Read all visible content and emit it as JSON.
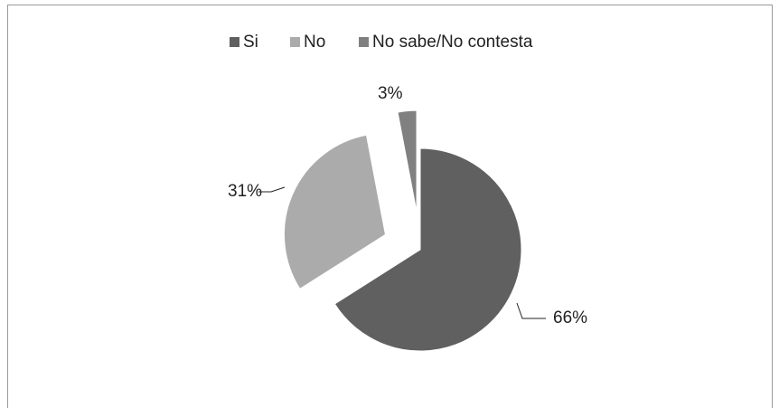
{
  "chart_data": {
    "type": "pie",
    "categories": [
      "Si",
      "No",
      "No sabe/No contesta"
    ],
    "values": [
      66,
      31,
      3
    ],
    "value_labels": [
      "66%",
      "31%",
      "3%"
    ],
    "colors": [
      "#606060",
      "#ababab",
      "#808080"
    ],
    "legend": "top"
  }
}
